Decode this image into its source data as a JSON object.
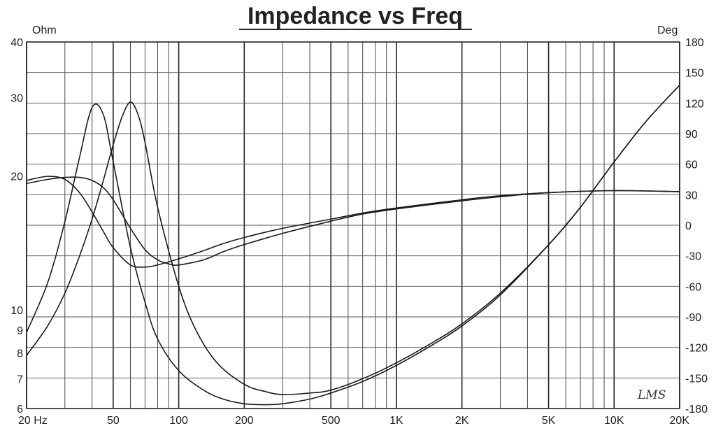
{
  "chart_data": {
    "type": "line",
    "title": "Impedance vs Freq",
    "xlabel": "",
    "ylabel_left_unit": "Ohm",
    "ylabel_right_unit": "Deg",
    "x_scale": "log",
    "y_left_scale": "log",
    "xlim": [
      20,
      20000
    ],
    "ylim_left": [
      6,
      40
    ],
    "ylim_right": [
      -180,
      180
    ],
    "x_tick_labels": [
      {
        "value": 20,
        "label": "20  Hz"
      },
      {
        "value": 50,
        "label": "50"
      },
      {
        "value": 100,
        "label": "100"
      },
      {
        "value": 200,
        "label": "200"
      },
      {
        "value": 500,
        "label": "500"
      },
      {
        "value": 1000,
        "label": "1K"
      },
      {
        "value": 2000,
        "label": "2K"
      },
      {
        "value": 5000,
        "label": "5K"
      },
      {
        "value": 10000,
        "label": "10K"
      },
      {
        "value": 20000,
        "label": "20K"
      }
    ],
    "y_left_tick_labels": [
      {
        "value": 40,
        "label": "40"
      },
      {
        "value": 30,
        "label": "30"
      },
      {
        "value": 20,
        "label": "20"
      },
      {
        "value": 10,
        "label": "10"
      },
      {
        "value": 9,
        "label": "9"
      },
      {
        "value": 8,
        "label": "8"
      },
      {
        "value": 7,
        "label": "7"
      },
      {
        "value": 6,
        "label": "6"
      }
    ],
    "y_right_tick_labels": [
      {
        "value": 180,
        "label": "180"
      },
      {
        "value": 150,
        "label": "150"
      },
      {
        "value": 120,
        "label": "120"
      },
      {
        "value": 90,
        "label": "90"
      },
      {
        "value": 60,
        "label": "60"
      },
      {
        "value": 30,
        "label": "30"
      },
      {
        "value": 0,
        "label": "0"
      },
      {
        "value": -30,
        "label": "-30"
      },
      {
        "value": -60,
        "label": "-60"
      },
      {
        "value": -90,
        "label": "-90"
      },
      {
        "value": -120,
        "label": "-120"
      },
      {
        "value": -150,
        "label": "-150"
      },
      {
        "value": -180,
        "label": "-180"
      }
    ],
    "grid": true,
    "series": [
      {
        "axis": "left",
        "x": [
          20,
          25,
          30,
          35,
          40,
          45,
          50,
          60,
          70,
          80,
          100,
          130,
          160,
          200,
          250,
          300,
          400,
          500,
          700,
          1000,
          1500,
          2000,
          3000,
          5000,
          7000,
          10000,
          14000,
          20000
        ],
        "y": [
          8.9,
          11.5,
          15.8,
          22.0,
          28.5,
          27.5,
          21.5,
          13.8,
          10.4,
          8.6,
          7.3,
          6.6,
          6.3,
          6.15,
          6.12,
          6.15,
          6.3,
          6.5,
          6.9,
          7.5,
          8.4,
          9.2,
          10.8,
          14.0,
          17.0,
          21.5,
          26.5,
          32.0
        ]
      },
      {
        "axis": "left",
        "x": [
          20,
          25,
          30,
          35,
          40,
          45,
          50,
          55,
          60,
          65,
          70,
          80,
          100,
          120,
          150,
          200,
          250,
          300,
          400,
          500,
          700,
          1000,
          1500,
          2000,
          3000,
          5000,
          7000,
          10000,
          14000,
          20000
        ],
        "y": [
          7.9,
          9.2,
          10.9,
          13.2,
          16.0,
          19.5,
          23.5,
          27.2,
          29.3,
          27.5,
          23.8,
          17.0,
          11.3,
          9.0,
          7.6,
          6.8,
          6.55,
          6.45,
          6.5,
          6.6,
          7.0,
          7.6,
          8.5,
          9.3,
          10.9,
          14.0,
          17.0,
          21.5,
          26.5,
          32.0
        ]
      },
      {
        "axis": "right",
        "x": [
          20,
          25,
          30,
          35,
          40,
          45,
          50,
          60,
          70,
          80,
          100,
          130,
          160,
          200,
          300,
          500,
          700,
          1000,
          2000,
          3000,
          5000,
          10000,
          20000
        ],
        "y": [
          44,
          48,
          45,
          32,
          13,
          -6,
          -22,
          -39,
          -41,
          -39,
          -33,
          -25,
          -18,
          -12,
          -3,
          6,
          12,
          17,
          25,
          29,
          32,
          34,
          33
        ]
      },
      {
        "axis": "right",
        "x": [
          20,
          25,
          30,
          35,
          40,
          45,
          50,
          60,
          70,
          80,
          90,
          100,
          130,
          160,
          200,
          300,
          500,
          700,
          1000,
          2000,
          3000,
          5000,
          10000,
          20000
        ],
        "y": [
          41,
          45,
          47,
          47,
          44,
          37,
          25,
          -3,
          -24,
          -34,
          -38,
          -39,
          -34,
          -26,
          -19,
          -8,
          4,
          11,
          16,
          24,
          28,
          32,
          34,
          33
        ]
      }
    ]
  },
  "watermark": "LMS"
}
